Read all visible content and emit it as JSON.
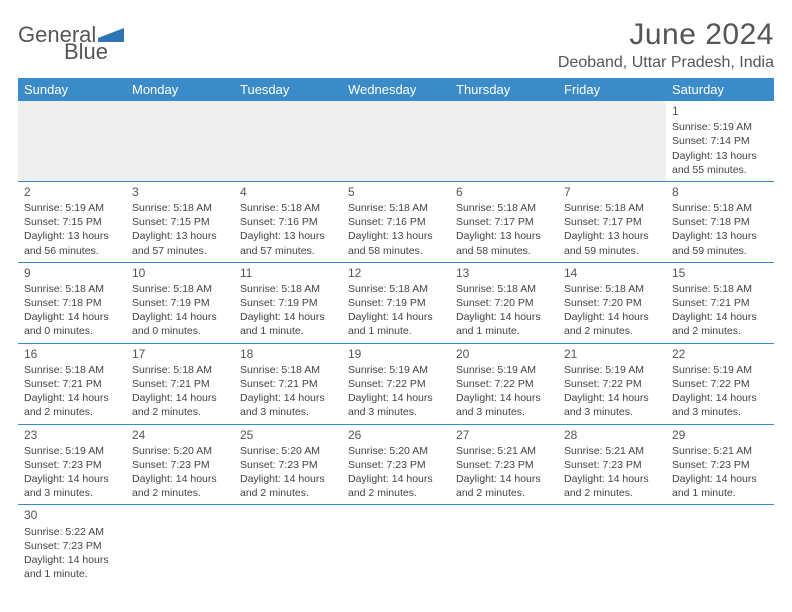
{
  "logo": {
    "part1": "General",
    "part2": "Blue"
  },
  "title": "June 2024",
  "location": "Deoband, Uttar Pradesh, India",
  "colors": {
    "header_bg": "#3b8bc8",
    "header_text": "#ffffff",
    "rule": "#3b8bc8",
    "blank_bg": "#efefef",
    "text": "#444444",
    "logo_blue": "#2e75b6"
  },
  "dayHeaders": [
    "Sunday",
    "Monday",
    "Tuesday",
    "Wednesday",
    "Thursday",
    "Friday",
    "Saturday"
  ],
  "weeks": [
    [
      null,
      null,
      null,
      null,
      null,
      null,
      {
        "n": "1",
        "sr": "Sunrise: 5:19 AM",
        "ss": "Sunset: 7:14 PM",
        "dl": "Daylight: 13 hours and 55 minutes."
      }
    ],
    [
      {
        "n": "2",
        "sr": "Sunrise: 5:19 AM",
        "ss": "Sunset: 7:15 PM",
        "dl": "Daylight: 13 hours and 56 minutes."
      },
      {
        "n": "3",
        "sr": "Sunrise: 5:18 AM",
        "ss": "Sunset: 7:15 PM",
        "dl": "Daylight: 13 hours and 57 minutes."
      },
      {
        "n": "4",
        "sr": "Sunrise: 5:18 AM",
        "ss": "Sunset: 7:16 PM",
        "dl": "Daylight: 13 hours and 57 minutes."
      },
      {
        "n": "5",
        "sr": "Sunrise: 5:18 AM",
        "ss": "Sunset: 7:16 PM",
        "dl": "Daylight: 13 hours and 58 minutes."
      },
      {
        "n": "6",
        "sr": "Sunrise: 5:18 AM",
        "ss": "Sunset: 7:17 PM",
        "dl": "Daylight: 13 hours and 58 minutes."
      },
      {
        "n": "7",
        "sr": "Sunrise: 5:18 AM",
        "ss": "Sunset: 7:17 PM",
        "dl": "Daylight: 13 hours and 59 minutes."
      },
      {
        "n": "8",
        "sr": "Sunrise: 5:18 AM",
        "ss": "Sunset: 7:18 PM",
        "dl": "Daylight: 13 hours and 59 minutes."
      }
    ],
    [
      {
        "n": "9",
        "sr": "Sunrise: 5:18 AM",
        "ss": "Sunset: 7:18 PM",
        "dl": "Daylight: 14 hours and 0 minutes."
      },
      {
        "n": "10",
        "sr": "Sunrise: 5:18 AM",
        "ss": "Sunset: 7:19 PM",
        "dl": "Daylight: 14 hours and 0 minutes."
      },
      {
        "n": "11",
        "sr": "Sunrise: 5:18 AM",
        "ss": "Sunset: 7:19 PM",
        "dl": "Daylight: 14 hours and 1 minute."
      },
      {
        "n": "12",
        "sr": "Sunrise: 5:18 AM",
        "ss": "Sunset: 7:19 PM",
        "dl": "Daylight: 14 hours and 1 minute."
      },
      {
        "n": "13",
        "sr": "Sunrise: 5:18 AM",
        "ss": "Sunset: 7:20 PM",
        "dl": "Daylight: 14 hours and 1 minute."
      },
      {
        "n": "14",
        "sr": "Sunrise: 5:18 AM",
        "ss": "Sunset: 7:20 PM",
        "dl": "Daylight: 14 hours and 2 minutes."
      },
      {
        "n": "15",
        "sr": "Sunrise: 5:18 AM",
        "ss": "Sunset: 7:21 PM",
        "dl": "Daylight: 14 hours and 2 minutes."
      }
    ],
    [
      {
        "n": "16",
        "sr": "Sunrise: 5:18 AM",
        "ss": "Sunset: 7:21 PM",
        "dl": "Daylight: 14 hours and 2 minutes."
      },
      {
        "n": "17",
        "sr": "Sunrise: 5:18 AM",
        "ss": "Sunset: 7:21 PM",
        "dl": "Daylight: 14 hours and 2 minutes."
      },
      {
        "n": "18",
        "sr": "Sunrise: 5:18 AM",
        "ss": "Sunset: 7:21 PM",
        "dl": "Daylight: 14 hours and 3 minutes."
      },
      {
        "n": "19",
        "sr": "Sunrise: 5:19 AM",
        "ss": "Sunset: 7:22 PM",
        "dl": "Daylight: 14 hours and 3 minutes."
      },
      {
        "n": "20",
        "sr": "Sunrise: 5:19 AM",
        "ss": "Sunset: 7:22 PM",
        "dl": "Daylight: 14 hours and 3 minutes."
      },
      {
        "n": "21",
        "sr": "Sunrise: 5:19 AM",
        "ss": "Sunset: 7:22 PM",
        "dl": "Daylight: 14 hours and 3 minutes."
      },
      {
        "n": "22",
        "sr": "Sunrise: 5:19 AM",
        "ss": "Sunset: 7:22 PM",
        "dl": "Daylight: 14 hours and 3 minutes."
      }
    ],
    [
      {
        "n": "23",
        "sr": "Sunrise: 5:19 AM",
        "ss": "Sunset: 7:23 PM",
        "dl": "Daylight: 14 hours and 3 minutes."
      },
      {
        "n": "24",
        "sr": "Sunrise: 5:20 AM",
        "ss": "Sunset: 7:23 PM",
        "dl": "Daylight: 14 hours and 2 minutes."
      },
      {
        "n": "25",
        "sr": "Sunrise: 5:20 AM",
        "ss": "Sunset: 7:23 PM",
        "dl": "Daylight: 14 hours and 2 minutes."
      },
      {
        "n": "26",
        "sr": "Sunrise: 5:20 AM",
        "ss": "Sunset: 7:23 PM",
        "dl": "Daylight: 14 hours and 2 minutes."
      },
      {
        "n": "27",
        "sr": "Sunrise: 5:21 AM",
        "ss": "Sunset: 7:23 PM",
        "dl": "Daylight: 14 hours and 2 minutes."
      },
      {
        "n": "28",
        "sr": "Sunrise: 5:21 AM",
        "ss": "Sunset: 7:23 PM",
        "dl": "Daylight: 14 hours and 2 minutes."
      },
      {
        "n": "29",
        "sr": "Sunrise: 5:21 AM",
        "ss": "Sunset: 7:23 PM",
        "dl": "Daylight: 14 hours and 1 minute."
      }
    ],
    [
      {
        "n": "30",
        "sr": "Sunrise: 5:22 AM",
        "ss": "Sunset: 7:23 PM",
        "dl": "Daylight: 14 hours and 1 minute."
      },
      null,
      null,
      null,
      null,
      null,
      null
    ]
  ]
}
